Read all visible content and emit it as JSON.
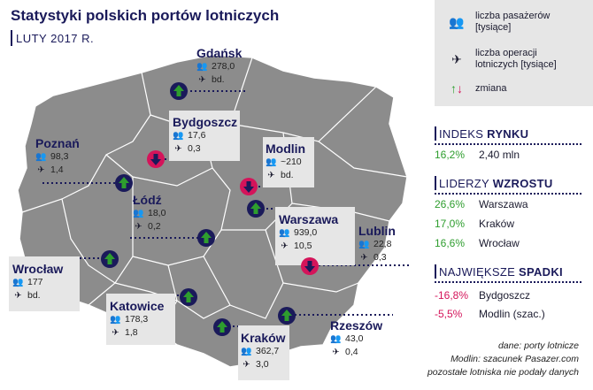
{
  "title": "Statystyki polskich portów lotniczych",
  "subtitle": "LUTY 2017 R.",
  "legend": {
    "passengers": "liczba pasażerów",
    "passengers_unit": "[tysiące]",
    "operations": "liczba operacji",
    "operations_unit": "lotniczych [tysiące]",
    "change": "zmiana"
  },
  "airports": [
    {
      "id": "gdansk",
      "name": "Gdańsk",
      "passengers": "278,0",
      "operations": "bd.",
      "trend": "up"
    },
    {
      "id": "bydgoszcz",
      "name": "Bydgoszcz",
      "passengers": "17,6",
      "operations": "0,3",
      "trend": "down"
    },
    {
      "id": "poznan",
      "name": "Poznań",
      "passengers": "98,3",
      "operations": "1,4",
      "trend": "up"
    },
    {
      "id": "modlin",
      "name": "Modlin",
      "passengers": "~210",
      "operations": "bd.",
      "trend": "down"
    },
    {
      "id": "lodz",
      "name": "Łódź",
      "passengers": "18,0",
      "operations": "0,2",
      "trend": "up"
    },
    {
      "id": "warszawa",
      "name": "Warszawa",
      "passengers": "939,0",
      "operations": "10,5",
      "trend": "up"
    },
    {
      "id": "lublin",
      "name": "Lublin",
      "passengers": "22,8",
      "operations": "0,3",
      "trend": "down"
    },
    {
      "id": "wroclaw",
      "name": "Wrocław",
      "passengers": "177",
      "operations": "bd.",
      "trend": "up"
    },
    {
      "id": "katowice",
      "name": "Katowice",
      "passengers": "178,3",
      "operations": "1,8",
      "trend": "up"
    },
    {
      "id": "rzeszow",
      "name": "Rzeszów",
      "passengers": "43,0",
      "operations": "0,4",
      "trend": "up"
    },
    {
      "id": "krakow",
      "name": "Kraków",
      "passengers": "362,7",
      "operations": "3,0",
      "trend": "up"
    }
  ],
  "market_index": {
    "heading_light": "INDEKS",
    "heading_bold": "RYNKU",
    "pct": "16,2%",
    "value": "2,40 mln"
  },
  "growth_leaders": {
    "heading_light": "LIDERZY",
    "heading_bold": "WZROSTU",
    "rows": [
      {
        "pct": "26,6%",
        "name": "Warszawa"
      },
      {
        "pct": "17,0%",
        "name": "Kraków"
      },
      {
        "pct": "16,6%",
        "name": "Wrocław"
      }
    ]
  },
  "largest_drops": {
    "heading_light": "NAJWIĘKSZE",
    "heading_bold": "SPADKI",
    "rows": [
      {
        "pct": "-16,8%",
        "name": "Bydgoszcz"
      },
      {
        "pct": "-5,5%",
        "name": "Modlin (szac.)"
      }
    ]
  },
  "source": {
    "line1": "dane: porty lotnicze",
    "line2": "Modlin: szacunek Pasazer.com",
    "line3": "pozostałe lotniska nie podały danych"
  },
  "colors": {
    "map_fill": "#8c8c8c",
    "map_stroke": "#ffffff",
    "up": "#2e9d2e",
    "down": "#d4145a",
    "marker_up_bg": "#1a1a5a",
    "marker_down_bg": "#d4145a",
    "label_box": "#e6e6e6",
    "navy": "#1a1a5a"
  }
}
